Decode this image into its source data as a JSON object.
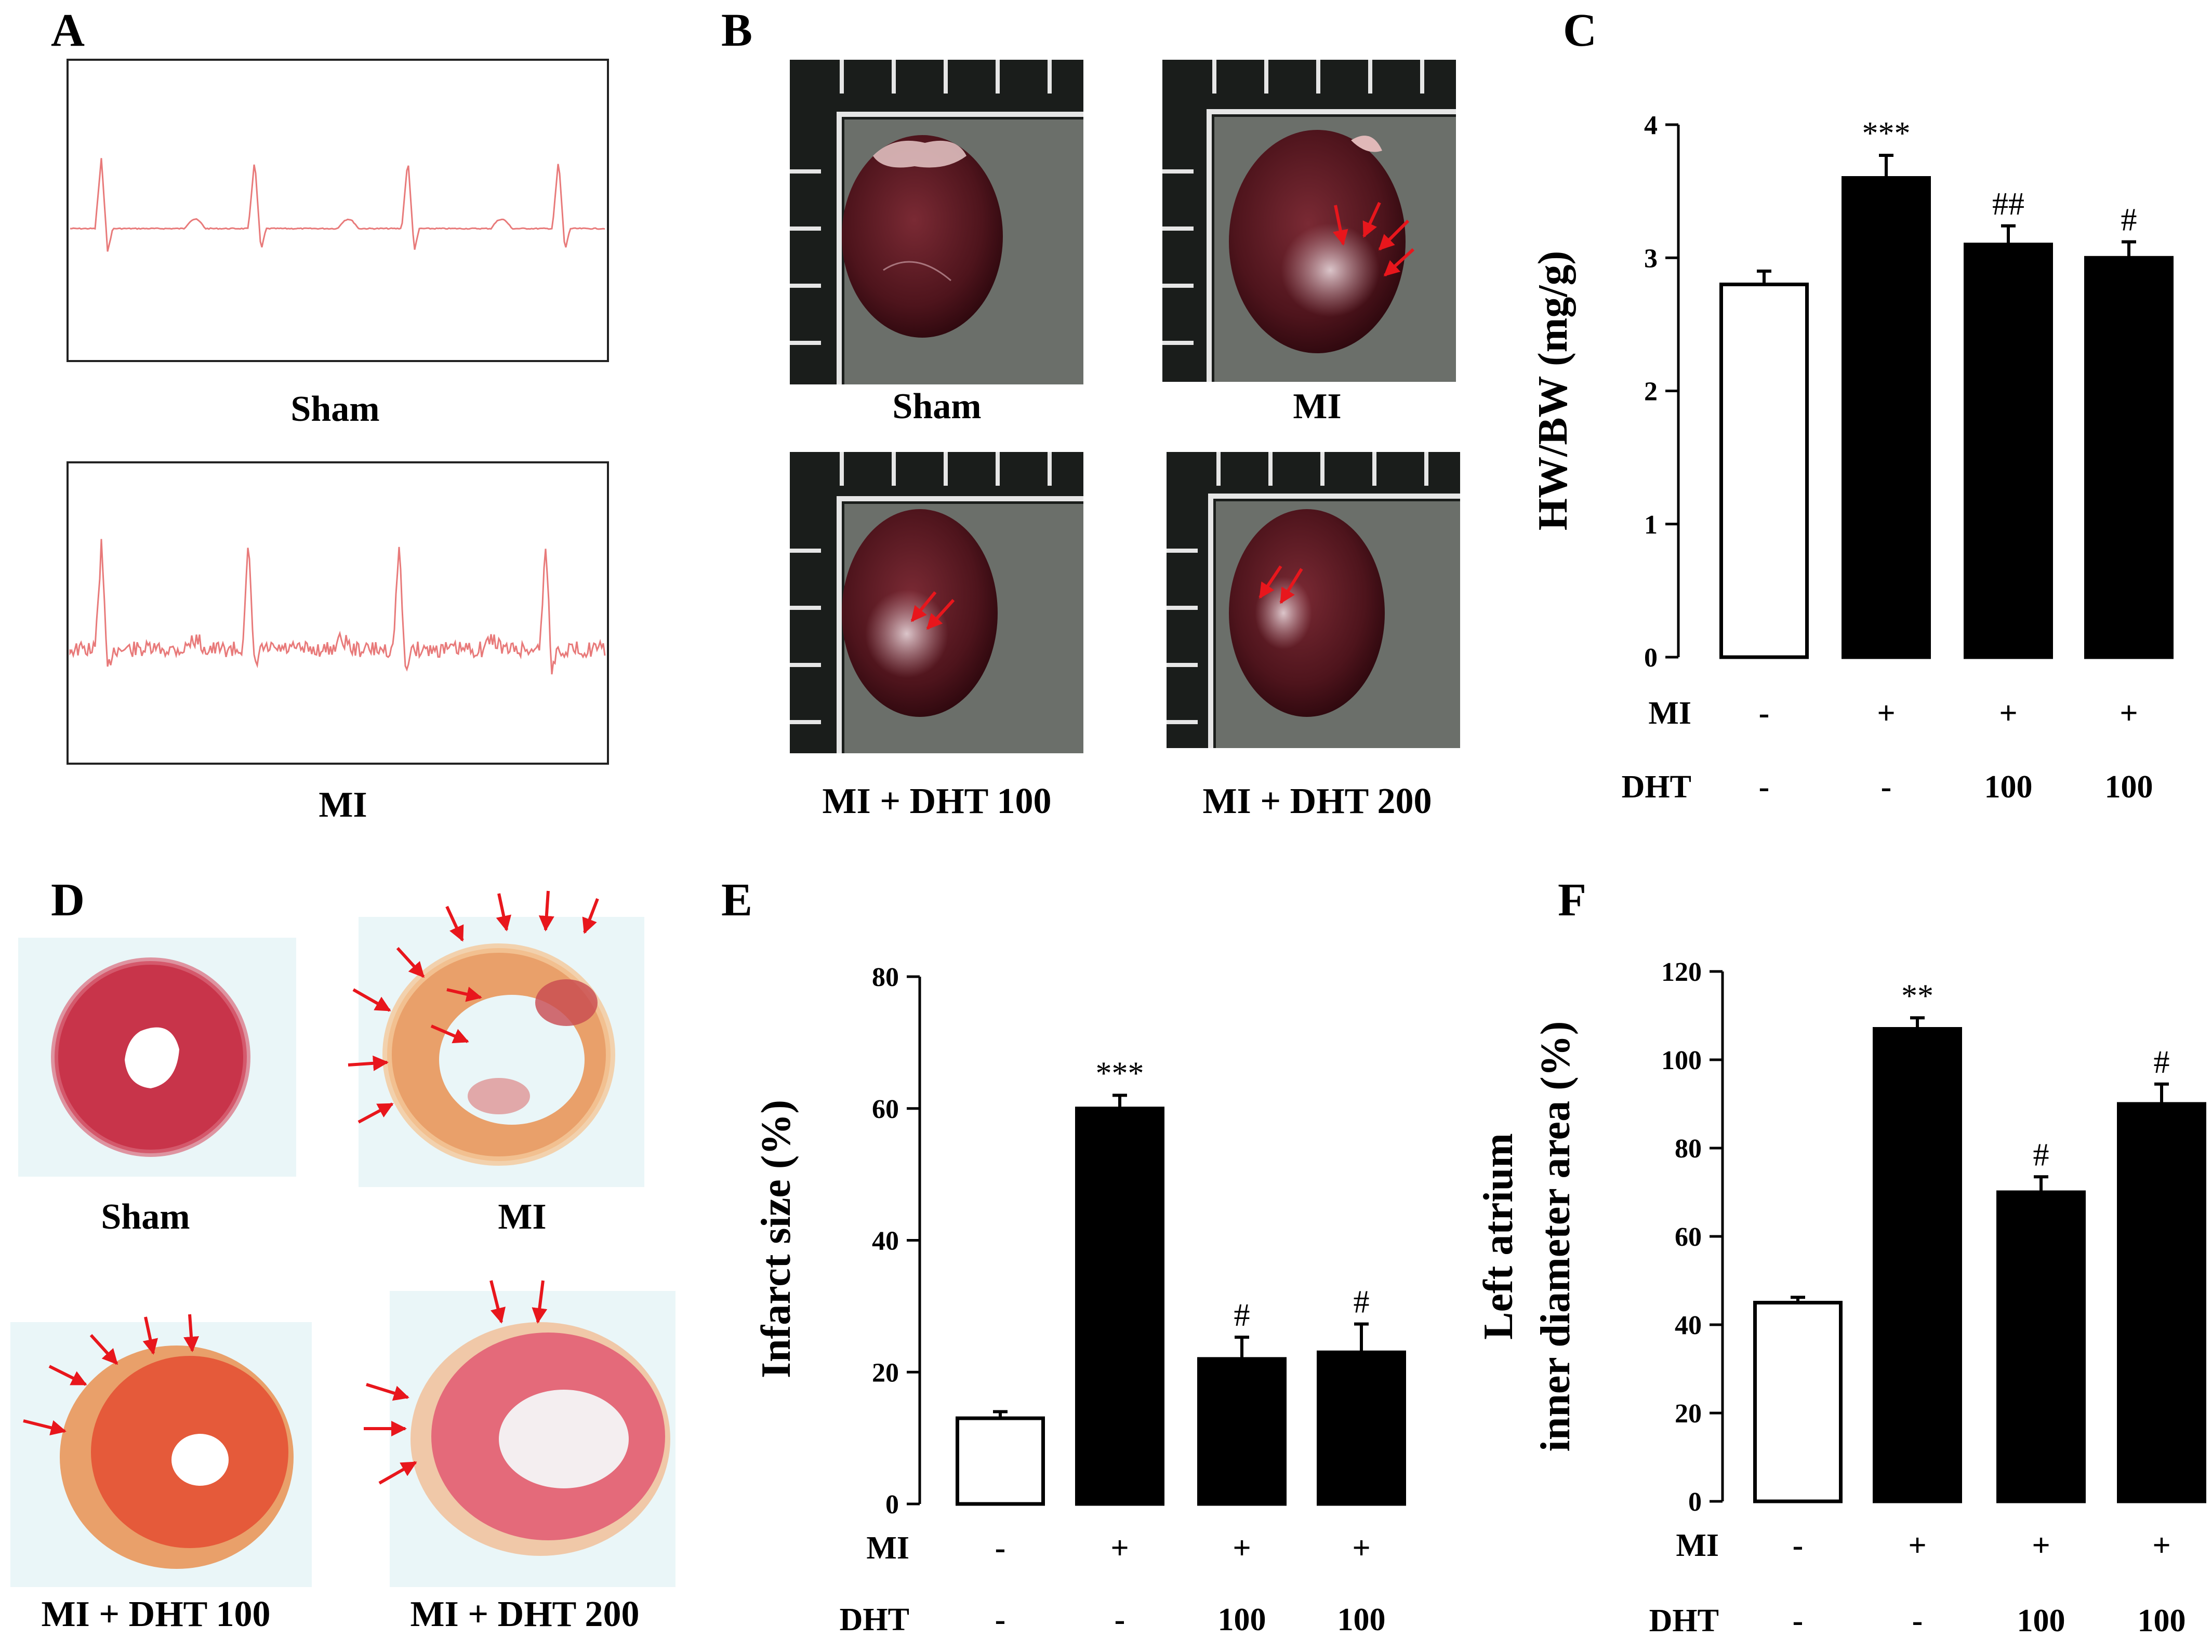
{
  "panel_letters": [
    "A",
    "B",
    "C",
    "D",
    "E",
    "F"
  ],
  "panel_a": {
    "labels": [
      "Sham",
      "MI"
    ],
    "trace_color": "#e87a7a"
  },
  "panel_b": {
    "labels": [
      "Sham",
      "MI",
      "MI + DHT 100",
      "MI + DHT 200"
    ]
  },
  "panel_d": {
    "labels": [
      "Sham",
      "MI",
      "MI + DHT 100",
      "MI + DHT 200"
    ]
  },
  "colors": {
    "arrow": "#e8161c",
    "ruler_bg": "#1a1d1b",
    "heart": "#5a1a22",
    "slice_sham": "#c8344a",
    "slice_infarct": "#e9a06a",
    "bar_black": "#000000",
    "bar_white": "#ffffff"
  },
  "chart_data": [
    {
      "panel": "C",
      "type": "bar",
      "ylabel": "HW/BW (mg/g)",
      "ylim": [
        0,
        4
      ],
      "yticks": [
        "0",
        "1",
        "2",
        "3",
        "4"
      ],
      "values": [
        2.8,
        3.6,
        3.1,
        3.0
      ],
      "errors": [
        0.1,
        0.17,
        0.14,
        0.12
      ],
      "fills": [
        "white",
        "black",
        "black",
        "black"
      ],
      "significance": [
        "",
        "***",
        "##",
        "#"
      ],
      "row_labels": [
        "MI",
        "DHT"
      ],
      "conditions": [
        [
          "-",
          "-"
        ],
        [
          "+",
          "-"
        ],
        [
          "+",
          "100"
        ],
        [
          "+",
          "100"
        ]
      ]
    },
    {
      "panel": "E",
      "type": "bar",
      "ylabel": "Infarct size (%)",
      "ylim": [
        0,
        80
      ],
      "yticks": [
        "0",
        "20",
        "40",
        "60",
        "80"
      ],
      "values": [
        13,
        60,
        22,
        23
      ],
      "errors": [
        1,
        2,
        3.3,
        4.3
      ],
      "fills": [
        "white",
        "black",
        "black",
        "black"
      ],
      "significance": [
        "",
        "***",
        "#",
        "#"
      ],
      "row_labels": [
        "MI",
        "DHT"
      ],
      "conditions": [
        [
          "-",
          "-"
        ],
        [
          "+",
          "-"
        ],
        [
          "+",
          "100"
        ],
        [
          "+",
          "100"
        ]
      ]
    },
    {
      "panel": "F",
      "type": "bar",
      "ylabel_lines": [
        "Left atrium",
        "inner diameter area (%)"
      ],
      "ylim": [
        0,
        120
      ],
      "yticks": [
        "0",
        "20",
        "40",
        "60",
        "80",
        "100",
        "120"
      ],
      "values": [
        45,
        107,
        70,
        90
      ],
      "errors": [
        1.2,
        2.5,
        3.5,
        4.5
      ],
      "fills": [
        "white",
        "black",
        "black",
        "black"
      ],
      "significance": [
        "",
        "**",
        "#",
        "#"
      ],
      "row_labels": [
        "MI",
        "DHT"
      ],
      "conditions": [
        [
          "-",
          "-"
        ],
        [
          "+",
          "-"
        ],
        [
          "+",
          "100"
        ],
        [
          "+",
          "100"
        ]
      ]
    }
  ]
}
